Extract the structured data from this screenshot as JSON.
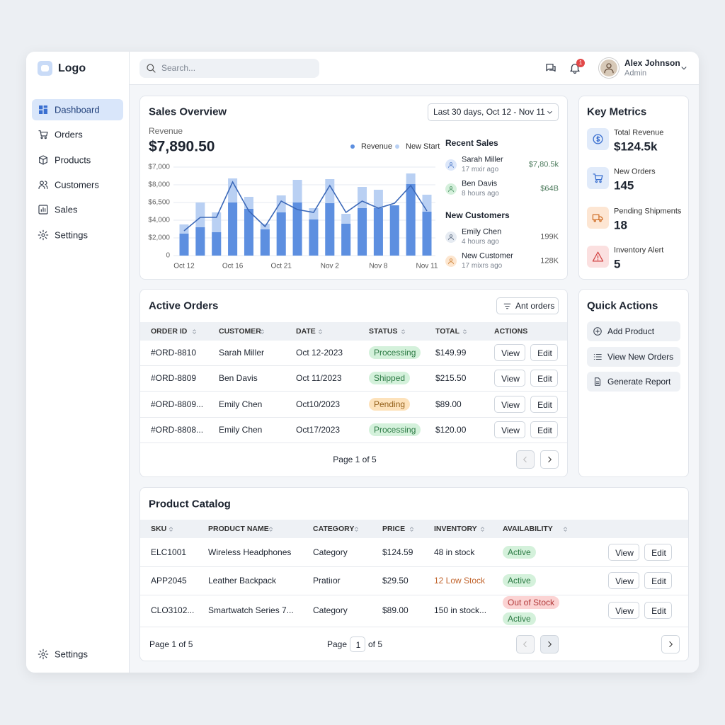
{
  "sidebar": {
    "logo": "Logo",
    "nav": [
      "Dashboard",
      "Orders",
      "Products",
      "Customers",
      "Sales",
      "Settings"
    ],
    "active": 0,
    "footer": "Settings"
  },
  "header": {
    "search_placeholder": "Search...",
    "notifications": 1,
    "user": {
      "name": "Alex Johnson",
      "role": "Admin"
    }
  },
  "sales_overview": {
    "title": "Sales Overview",
    "range": "Last 30 days, Oct 12 - Nov 11",
    "revenue_label": "Revenue",
    "revenue": "$7,890.50",
    "chart": {
      "type": "bar",
      "categories": [
        "Oct 12",
        null,
        null,
        "Oct 16",
        null,
        null,
        "Oct 21",
        null,
        null,
        "Nov 2",
        null,
        null,
        "Nov 8",
        null,
        null,
        "Nov 11"
      ],
      "series": [
        {
          "name": "Revenue",
          "color": "#5d8fe0",
          "values": [
            2480,
            3200,
            2640,
            6000,
            5280,
            2960,
            4880,
            6000,
            4080,
            5920,
            3600,
            5360,
            5360,
            5680,
            8080,
            4960
          ]
        },
        {
          "name": "New Start",
          "color": "#b9d0f3",
          "values": [
            3520,
            6000,
            4880,
            8720,
            6640,
            3600,
            6800,
            8560,
            5360,
            8640,
            4720,
            7760,
            7440,
            5520,
            9280,
            6880
          ]
        }
      ],
      "line": {
        "color": "#3b68b8",
        "values": [
          2800,
          4320,
          4320,
          8320,
          5040,
          3280,
          6160,
          5200,
          4880,
          7920,
          4880,
          6160,
          5360,
          5920,
          7920,
          5040
        ]
      },
      "ylim": [
        0,
        10000
      ],
      "yticks": [
        {
          "value": 7000,
          "label": "$7,000"
        },
        {
          "value": 8000,
          "label": "$8,000"
        },
        {
          "value": 6500,
          "label": "$6,500"
        },
        {
          "value": 4000,
          "label": "$4,000"
        },
        {
          "value": 2000,
          "label": "$2,000"
        },
        0
      ],
      "grid": true
    },
    "recent_sales": {
      "title": "Recent Sales",
      "items": [
        {
          "name": "Sarah Miller",
          "time": "17 mxir ago",
          "amount": "$7,80.5k"
        },
        {
          "name": "Ben Davis",
          "time": "8 hours ago",
          "amount": "$64B"
        }
      ]
    },
    "new_customers": {
      "title": "New Customers",
      "items": [
        {
          "name": "Emily Chen",
          "time": "4 hours ago",
          "amount": "199K"
        },
        {
          "name": "New Customer",
          "time": "17 mixrs ago",
          "amount": "128K"
        }
      ]
    }
  },
  "key_metrics": {
    "title": "Key Metrics",
    "items": [
      {
        "label": "Total Revenue",
        "value": "$124.5k"
      },
      {
        "label": "New Orders",
        "value": 145
      },
      {
        "label": "Pending Shipments",
        "value": 18
      },
      {
        "label": "Inventory Alert",
        "value": 5
      }
    ]
  },
  "active_orders": {
    "title": "Active Orders",
    "filter": "Ant orders",
    "columns": [
      "ORDER ID",
      "CUSTOMER",
      "DATE",
      "STATUS",
      "TOTAL",
      "ACTIONS"
    ],
    "rows": [
      {
        "id": "#ORD-8810",
        "customer": "Sarah Miller",
        "date": "Oct 12-2023",
        "status": "Processing",
        "tone": "green",
        "total": "$149.99"
      },
      {
        "id": "#ORD-8809",
        "customer": "Ben Davis",
        "date": "Oct 11/2023",
        "status": "Shipped",
        "tone": "green",
        "total": "$215.50"
      },
      {
        "id": "#ORD-8809...",
        "customer": "Emily Chen",
        "date": "Oct10/2023",
        "status": "Pending",
        "tone": "orange",
        "total": "$89.00"
      },
      {
        "id": "#ORD-8808...",
        "customer": "Emily Chen",
        "date": "Oct17/2023",
        "status": "Processing",
        "tone": "green",
        "total": "$120.00"
      }
    ],
    "actions": [
      "View",
      "Edit"
    ],
    "pagination": "Page 1 of 5"
  },
  "quick_actions": {
    "title": "Quick Actions",
    "items": [
      "Add Product",
      "View New Orders",
      "Generate Report"
    ]
  },
  "product_catalog": {
    "title": "Product Catalog",
    "columns": [
      "SKU",
      "PRODUCT NAME",
      "CATEGORY",
      "PRICE",
      "INVENTORY",
      "AVAILABILITY"
    ],
    "rows": [
      {
        "sku": "ELC1001",
        "name": "Wireless Headphones",
        "category": "Category",
        "price": "$124.59",
        "inventory": "48 in stock",
        "availability": [
          {
            "text": "Active",
            "tone": "green"
          }
        ]
      },
      {
        "sku": "APP2045",
        "name": "Leather Backpack",
        "category": "Pratiıor",
        "price": "$29.50",
        "inventory": "12 Low Stock",
        "inventory_color": "#c0622a",
        "availability": [
          {
            "text": "Active",
            "tone": "green"
          }
        ]
      },
      {
        "sku": "CLO3102...",
        "name": "Smartwatch Series 7...",
        "category": "Category",
        "price": "$89.00",
        "inventory": "150 in stock...",
        "availability": [
          {
            "text": "Out of Stock",
            "tone": "red"
          },
          {
            "text": "Active",
            "tone": "green"
          }
        ]
      }
    ],
    "actions": [
      "View",
      "Edit"
    ],
    "pagination": "Page 1 of 5",
    "page_label": "Page",
    "page": 1,
    "page_total": "of 5"
  }
}
